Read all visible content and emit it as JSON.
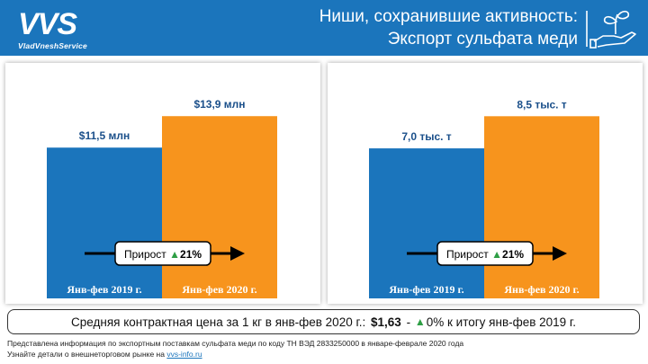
{
  "header": {
    "logo_text": "VVS",
    "logo_sub": "VladVneshService",
    "title_line1": "Ниши, сохранившие активность:",
    "title_line2": "Экспорт сульфата меди",
    "icon": "plant-in-hand-icon"
  },
  "colors": {
    "header": "#1b75bc",
    "bar_2019": "#1b75bc",
    "bar_2020": "#f7941d",
    "growth_arrow": "#2e9e45"
  },
  "chart_data": [
    {
      "type": "bar",
      "categories": [
        "Янв-фев 2019 г.",
        "Янв-фев 2020 г."
      ],
      "values": [
        11.5,
        13.9
      ],
      "value_labels": [
        "$11,5 млн",
        "$13,9 млн"
      ],
      "unit": "млн USD",
      "ylim": [
        0,
        17
      ],
      "grid": false,
      "growth_label": "Прирост",
      "growth_value": "21%"
    },
    {
      "type": "bar",
      "categories": [
        "Янв-фев 2019 г.",
        "Янв-фев 2020 г."
      ],
      "values": [
        7.0,
        8.5
      ],
      "value_labels": [
        "7,0 тыс. т",
        "8,5 тыс. т"
      ],
      "unit": "тыс. т",
      "ylim": [
        0,
        10.4
      ],
      "grid": false,
      "growth_label": "Прирост",
      "growth_value": "21%"
    }
  ],
  "footer": {
    "price_text_before": "Средняя контрактная цена за 1 кг в янв-фев 2020 г.:",
    "price_value": "$1,63",
    "price_dash": "-",
    "change_value": "0%",
    "price_text_after": "к итогу янв-фев 2019 г."
  },
  "notes": {
    "line1": "Представлена информация по экспортным поставкам сульфата меди по коду ТН ВЭД 2833250000 в январе-феврале 2020 года",
    "line2_prefix": "Узнайте детали о внешнеторговом рынке на",
    "link": "vvs-info.ru"
  }
}
